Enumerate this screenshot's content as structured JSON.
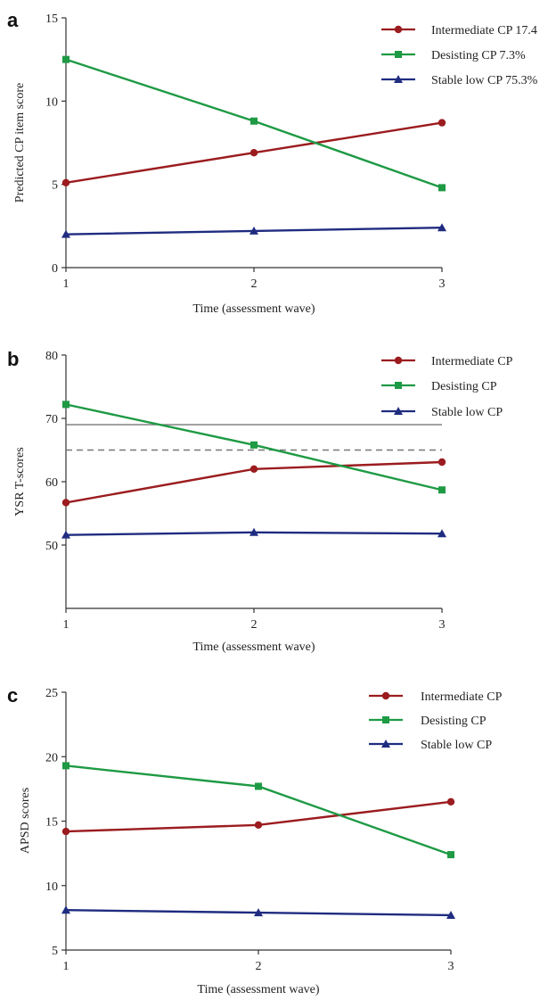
{
  "colors": {
    "intermediate": "#9b1c1f",
    "desisting": "#1e9a44",
    "stable": "#1f2c80",
    "axis": "#333333",
    "reference": "#777777"
  },
  "chart_data": [
    {
      "panel": "a",
      "type": "line",
      "title": "",
      "xlabel": "Time (assessment wave)",
      "ylabel": "Predicted CP item score",
      "x": [
        1,
        2,
        3
      ],
      "xticks": [
        "1",
        "2",
        "3"
      ],
      "ylim": [
        0,
        15
      ],
      "yticks": [
        "0",
        "5",
        "10",
        "15"
      ],
      "ytick_values": [
        0,
        5,
        10,
        15
      ],
      "grid": false,
      "legend_position": "top-right",
      "series": [
        {
          "name": "Intermediate CP 17.4",
          "key": "intermediate",
          "marker": "circle",
          "values": [
            5.1,
            6.9,
            8.7
          ]
        },
        {
          "name": "Desisting CP 7.3%",
          "key": "desisting",
          "marker": "square",
          "values": [
            12.5,
            8.8,
            4.8
          ]
        },
        {
          "name": "Stable low CP 75.3%",
          "key": "stable",
          "marker": "triangle",
          "values": [
            2.0,
            2.2,
            2.4
          ]
        }
      ],
      "reference_lines": []
    },
    {
      "panel": "b",
      "type": "line",
      "title": "",
      "xlabel": "Time (assessment wave)",
      "ylabel": "YSR T-scores",
      "x": [
        1,
        2,
        3
      ],
      "xticks": [
        "1",
        "2",
        "3"
      ],
      "ylim": [
        40,
        80
      ],
      "yticks": [
        "50",
        "60",
        "70",
        "80"
      ],
      "ytick_values": [
        50,
        60,
        70,
        80
      ],
      "grid": false,
      "legend_position": "top-right",
      "series": [
        {
          "name": "Intermediate CP",
          "key": "intermediate",
          "marker": "circle",
          "values": [
            56.7,
            62.0,
            63.1
          ]
        },
        {
          "name": "Desisting CP",
          "key": "desisting",
          "marker": "square",
          "values": [
            72.2,
            65.8,
            58.7
          ]
        },
        {
          "name": "Stable low CP",
          "key": "stable",
          "marker": "triangle",
          "values": [
            51.6,
            52.0,
            51.8
          ]
        }
      ],
      "reference_lines": [
        {
          "y": 69,
          "style": "solid"
        },
        {
          "y": 65,
          "style": "dashed"
        }
      ]
    },
    {
      "panel": "c",
      "type": "line",
      "title": "",
      "xlabel": "Time (assessment wave)",
      "ylabel": "APSD scores",
      "x": [
        1,
        2,
        3
      ],
      "xticks": [
        "1",
        "2",
        "3"
      ],
      "ylim": [
        5,
        25
      ],
      "yticks": [
        "5",
        "10",
        "15",
        "20",
        "25"
      ],
      "ytick_values": [
        5,
        10,
        15,
        20,
        25
      ],
      "grid": false,
      "legend_position": "top-right",
      "series": [
        {
          "name": "Intermediate CP",
          "key": "intermediate",
          "marker": "circle",
          "values": [
            14.2,
            14.7,
            16.5
          ]
        },
        {
          "name": "Desisting CP",
          "key": "desisting",
          "marker": "square",
          "values": [
            19.3,
            17.7,
            12.4
          ]
        },
        {
          "name": "Stable low CP",
          "key": "stable",
          "marker": "triangle",
          "values": [
            8.1,
            7.9,
            7.7
          ]
        }
      ],
      "reference_lines": []
    }
  ]
}
